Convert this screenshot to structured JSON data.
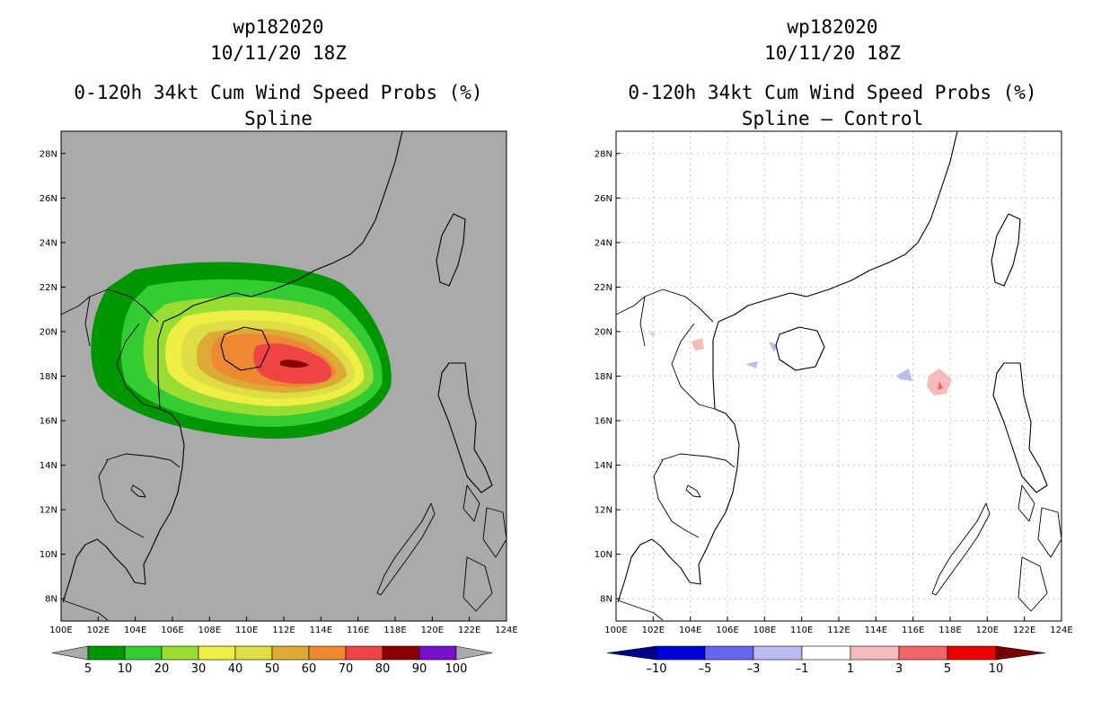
{
  "left_panel": {
    "storm_id": "wp182020",
    "datetime": "10/11/20 18Z",
    "product": "0-120h 34kt Cum Wind Speed Probs (%)",
    "subtitle": "Spline",
    "background_color": "#aaaaaa",
    "colorbar": {
      "colors": [
        "#009600",
        "#33cc33",
        "#99dd33",
        "#eeee44",
        "#dddd44",
        "#ddaa33",
        "#ee8833",
        "#ee4444",
        "#880000",
        "#7711cc"
      ],
      "labels": [
        "5",
        "10",
        "20",
        "30",
        "40",
        "50",
        "60",
        "70",
        "80",
        "90",
        "100"
      ]
    }
  },
  "right_panel": {
    "storm_id": "wp182020",
    "datetime": "10/11/20 18Z",
    "product": "0-120h 34kt Cum Wind Speed Probs (%)",
    "subtitle": "Spline – Control",
    "background_color": "#ffffff",
    "colorbar": {
      "colors": [
        "#0000dd",
        "#6666ee",
        "#bbbbf5",
        "#ffffff",
        "#f5bbbb",
        "#ee6666",
        "#ee0000"
      ],
      "end_low": "#000088",
      "end_high": "#770000",
      "labels": [
        "–10",
        "–5",
        "–3",
        "–1",
        "1",
        "3",
        "5",
        "10"
      ]
    }
  },
  "axes": {
    "lon_ticks": [
      "100E",
      "102E",
      "104E",
      "106E",
      "108E",
      "110E",
      "112E",
      "114E",
      "116E",
      "118E",
      "120E",
      "122E",
      "124E"
    ],
    "lat_ticks": [
      "8N",
      "10N",
      "12N",
      "14N",
      "16N",
      "18N",
      "20N",
      "22N",
      "24N",
      "26N",
      "28N"
    ],
    "lon_range": [
      100,
      124
    ],
    "lat_range": [
      7,
      29
    ]
  }
}
